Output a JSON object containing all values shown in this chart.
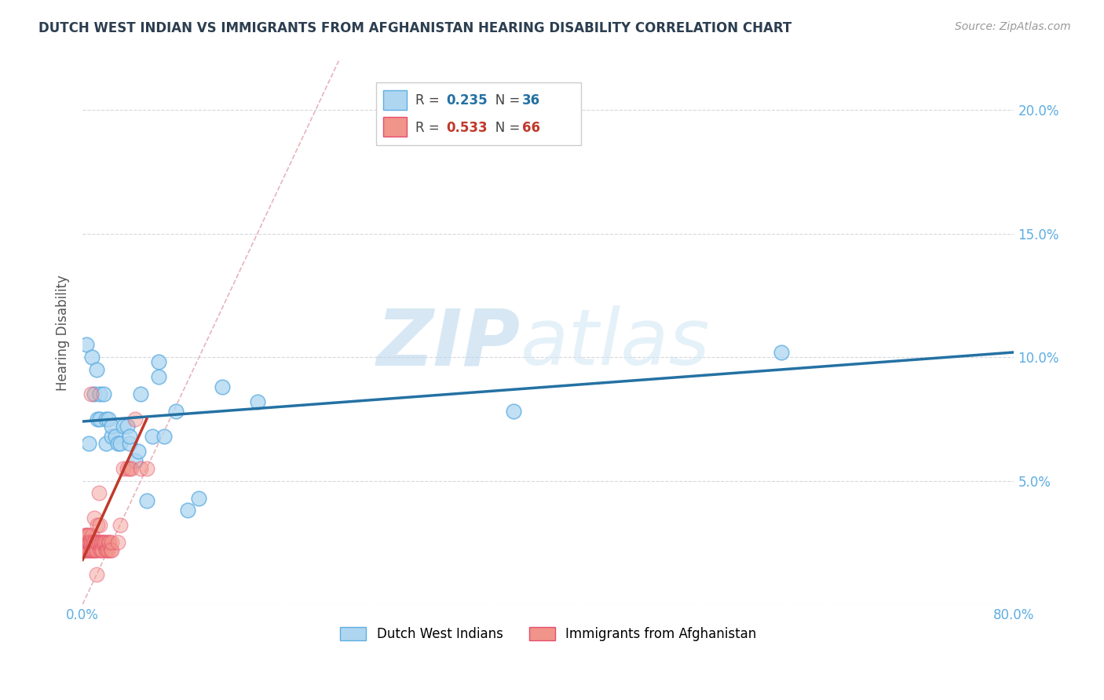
{
  "title": "DUTCH WEST INDIAN VS IMMIGRANTS FROM AFGHANISTAN HEARING DISABILITY CORRELATION CHART",
  "source": "Source: ZipAtlas.com",
  "ylabel": "Hearing Disability",
  "xlim": [
    0,
    0.8
  ],
  "ylim": [
    0,
    0.22
  ],
  "yticks": [
    0.0,
    0.05,
    0.1,
    0.15,
    0.2
  ],
  "yticklabels_right": [
    "",
    "5.0%",
    "10.0%",
    "15.0%",
    "20.0%"
  ],
  "xtick_positions": [
    0.0,
    0.1,
    0.2,
    0.3,
    0.4,
    0.5,
    0.6,
    0.7,
    0.8
  ],
  "blue_R": "0.235",
  "blue_N": "36",
  "pink_R": "0.533",
  "pink_N": "66",
  "blue_color": "#AED6F1",
  "blue_edge_color": "#5DADE2",
  "pink_color": "#F1948A",
  "pink_edge_color": "#E74C6B",
  "blue_line_color": "#2471A3",
  "pink_line_color": "#C0392B",
  "ref_line_color": "#D5D8DC",
  "grid_color": "#D5D8DC",
  "title_color": "#2C3E50",
  "axis_tick_color": "#5DADE2",
  "background_color": "#FFFFFF",
  "watermark_zip": "ZIP",
  "watermark_atlas": "atlas",
  "legend_label_blue": "Dutch West Indians",
  "legend_label_pink": "Immigrants from Afghanistan",
  "blue_x": [
    0.003,
    0.005,
    0.008,
    0.01,
    0.012,
    0.013,
    0.015,
    0.015,
    0.018,
    0.02,
    0.02,
    0.022,
    0.025,
    0.025,
    0.028,
    0.03,
    0.032,
    0.035,
    0.038,
    0.04,
    0.04,
    0.045,
    0.048,
    0.05,
    0.055,
    0.06,
    0.065,
    0.065,
    0.07,
    0.08,
    0.09,
    0.1,
    0.12,
    0.15,
    0.37,
    0.6
  ],
  "blue_y": [
    0.105,
    0.065,
    0.1,
    0.085,
    0.095,
    0.075,
    0.085,
    0.075,
    0.085,
    0.075,
    0.065,
    0.075,
    0.068,
    0.072,
    0.068,
    0.065,
    0.065,
    0.072,
    0.072,
    0.065,
    0.068,
    0.058,
    0.062,
    0.085,
    0.042,
    0.068,
    0.092,
    0.098,
    0.068,
    0.078,
    0.038,
    0.043,
    0.088,
    0.082,
    0.078,
    0.102
  ],
  "pink_x": [
    0.001,
    0.001,
    0.002,
    0.002,
    0.002,
    0.003,
    0.003,
    0.003,
    0.003,
    0.004,
    0.004,
    0.004,
    0.005,
    0.005,
    0.005,
    0.005,
    0.006,
    0.006,
    0.006,
    0.007,
    0.007,
    0.007,
    0.008,
    0.008,
    0.008,
    0.009,
    0.009,
    0.01,
    0.01,
    0.01,
    0.011,
    0.011,
    0.012,
    0.012,
    0.013,
    0.013,
    0.014,
    0.014,
    0.015,
    0.015,
    0.015,
    0.016,
    0.016,
    0.017,
    0.017,
    0.018,
    0.019,
    0.02,
    0.02,
    0.021,
    0.022,
    0.022,
    0.023,
    0.024,
    0.025,
    0.025,
    0.03,
    0.032,
    0.035,
    0.038,
    0.04,
    0.042,
    0.045,
    0.05,
    0.055,
    0.012
  ],
  "pink_y": [
    0.025,
    0.022,
    0.022,
    0.025,
    0.028,
    0.022,
    0.025,
    0.028,
    0.025,
    0.022,
    0.025,
    0.028,
    0.022,
    0.025,
    0.025,
    0.028,
    0.022,
    0.025,
    0.025,
    0.022,
    0.025,
    0.085,
    0.022,
    0.025,
    0.028,
    0.022,
    0.025,
    0.022,
    0.025,
    0.035,
    0.022,
    0.025,
    0.022,
    0.025,
    0.025,
    0.032,
    0.025,
    0.045,
    0.022,
    0.025,
    0.032,
    0.025,
    0.022,
    0.022,
    0.025,
    0.025,
    0.025,
    0.022,
    0.025,
    0.022,
    0.025,
    0.022,
    0.025,
    0.022,
    0.022,
    0.025,
    0.025,
    0.032,
    0.055,
    0.055,
    0.055,
    0.055,
    0.075,
    0.055,
    0.055,
    0.012
  ],
  "blue_trendline_x": [
    0.0,
    0.8
  ],
  "blue_trendline_y": [
    0.074,
    0.102
  ],
  "pink_trendline_x": [
    0.0,
    0.055
  ],
  "pink_trendline_y": [
    0.018,
    0.075
  ],
  "ref_line_x": [
    0.0,
    0.22
  ],
  "ref_line_y": [
    0.0,
    0.22
  ]
}
